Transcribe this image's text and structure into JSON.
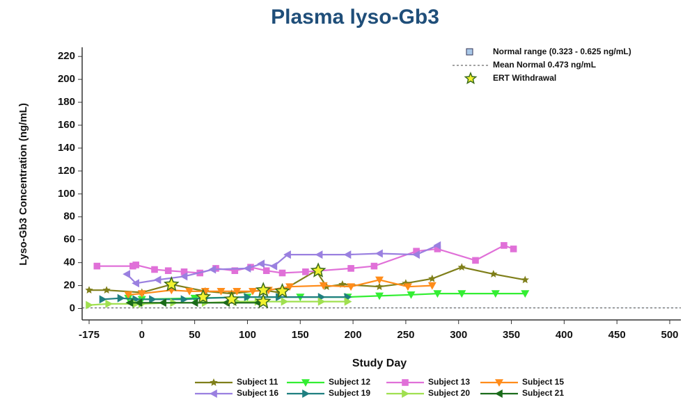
{
  "chart_data": {
    "type": "line",
    "title": "Plasma lyso-Gb3",
    "x_label": "Study Day",
    "y_label": "Lyso-Gb3 Concentration (ng/mL)",
    "xlim": [
      -185,
      515
    ],
    "xticks": [
      -175,
      0,
      50,
      100,
      150,
      200,
      250,
      300,
      350,
      400,
      450,
      500
    ],
    "ylim": [
      -10,
      228
    ],
    "yticks": [
      0,
      20,
      40,
      60,
      80,
      100,
      120,
      140,
      160,
      180,
      200,
      220
    ],
    "normal_range": {
      "low": 0.323,
      "high": 0.625,
      "label": "Normal range (0.323 - 0.625 ng/mL)",
      "color": "#a9c8e8"
    },
    "reference_line": {
      "value": 0.473,
      "label": "Mean Normal 0.473 ng/mL"
    },
    "series": [
      {
        "name": "Subject 11",
        "color": "#7f7f1a",
        "marker": "star",
        "x": [
          -175,
          -117,
          0,
          28,
          60,
          85,
          115,
          130,
          165,
          175,
          190,
          225,
          250,
          275,
          303,
          333,
          363
        ],
        "values": [
          16,
          16,
          14,
          21,
          15,
          13,
          16,
          14,
          33,
          19,
          21,
          19,
          22,
          26,
          36,
          30,
          25
        ]
      },
      {
        "name": "Subject 12",
        "color": "#33ee33",
        "marker": "tri-down",
        "x": [
          -45,
          0,
          50,
          100,
          150,
          195,
          225,
          255,
          280,
          303,
          335,
          363
        ],
        "values": [
          9,
          8,
          9,
          10,
          10,
          10,
          11,
          12,
          13,
          13,
          13,
          13
        ]
      },
      {
        "name": "Subject 13",
        "color": "#e070d8",
        "marker": "square",
        "x": [
          -149,
          -30,
          -20,
          12,
          25,
          40,
          55,
          70,
          88,
          103,
          118,
          133,
          155,
          198,
          220,
          260,
          280,
          316,
          343,
          352
        ],
        "values": [
          37,
          37,
          38,
          34,
          33,
          32,
          31,
          35,
          33,
          36,
          33,
          31,
          32,
          35,
          37,
          50,
          52,
          42,
          55,
          52
        ]
      },
      {
        "name": "Subject 15",
        "color": "#ff8c1a",
        "marker": "tri-down",
        "x": [
          -45,
          0,
          28,
          45,
          60,
          75,
          90,
          105,
          120,
          140,
          172,
          198,
          225,
          252,
          275
        ],
        "values": [
          12,
          13,
          16,
          15,
          15,
          15,
          15,
          15,
          16,
          19,
          20,
          19,
          25,
          19,
          20
        ]
      },
      {
        "name": "Subject 16",
        "color": "#9a80e0",
        "marker": "tri-left",
        "x": [
          -50,
          -20,
          15,
          40,
          67,
          100,
          113,
          125,
          138,
          168,
          195,
          225,
          260,
          280
        ],
        "values": [
          30,
          22,
          25,
          28,
          34,
          35,
          39,
          37,
          47,
          47,
          47,
          48,
          47,
          55
        ]
      },
      {
        "name": "Subject 19",
        "color": "#1f7f80",
        "marker": "tri-right",
        "x": [
          -130,
          -70,
          -20,
          10,
          40,
          60,
          100,
          130,
          170,
          195
        ],
        "values": [
          8,
          9,
          8,
          8,
          8,
          9,
          10,
          10,
          10,
          10
        ]
      },
      {
        "name": "Subject 20",
        "color": "#a0e050",
        "marker": "tri-right",
        "x": [
          -175,
          -110,
          -20,
          0,
          30,
          60,
          90,
          110,
          135,
          170,
          195
        ],
        "values": [
          3,
          4,
          4,
          4,
          5,
          5,
          6,
          6,
          6,
          6,
          6
        ]
      },
      {
        "name": "Subject 21",
        "color": "#1a6b1a",
        "marker": "tri-left",
        "x": [
          -40,
          -10,
          20,
          50,
          80,
          110
        ],
        "values": [
          5,
          5,
          5,
          5,
          5,
          5
        ]
      }
    ],
    "events": {
      "name": "ERT Withdrawal",
      "marker": "star",
      "color": "#f2f230",
      "x": [
        28,
        58,
        85,
        115,
        115,
        133,
        167
      ],
      "values": [
        21,
        10,
        8,
        16,
        6,
        15,
        33
      ]
    }
  }
}
